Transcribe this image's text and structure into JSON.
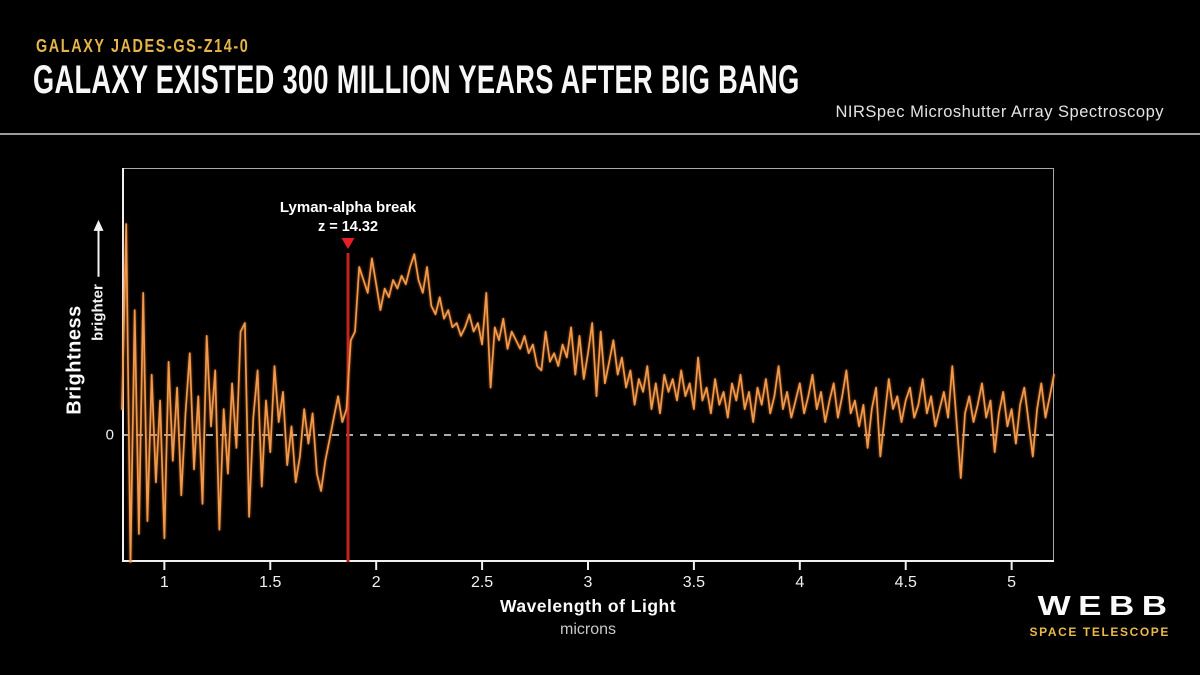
{
  "header": {
    "eyebrow": "GALAXY JADES-GS-Z14-0",
    "title": "GALAXY EXISTED 300 MILLION YEARS AFTER BIG BANG",
    "instrument": "NIRSpec Microshutter Array Spectroscopy"
  },
  "colors": {
    "background": "#000000",
    "accent_gold": "#e5b54a",
    "spectrum_orange": "#f19a4d",
    "marker_red": "#e81e25",
    "marker_line_red": "#c3231d",
    "axis_white": "#f0f0f0",
    "box_gray": "#a8a8a8"
  },
  "chart_data": {
    "type": "line",
    "xlabel": "Wavelength of Light",
    "xunit": "microns",
    "ylabel": "Brightness",
    "y_direction_label": "brighter",
    "y_zero_label": "0",
    "xlim": [
      0.8,
      5.2
    ],
    "ylim": [
      -2.95,
      6.2
    ],
    "x_ticks": [
      1,
      1.5,
      2,
      2.5,
      3,
      3.5,
      4,
      4.5,
      5
    ],
    "zero_line_y": 0,
    "grid": "off",
    "annotation": {
      "line1": "Lyman-alpha break",
      "line2": "z = 14.32",
      "x": 1.867
    },
    "series": {
      "name": "JADES-GS-z14-0 NIRSpec spectrum",
      "x_start": 0.8,
      "x_step": 0.02,
      "values": [
        0.6,
        4.9,
        -2.95,
        2.9,
        -2.3,
        3.3,
        -2.0,
        1.4,
        -1.1,
        0.8,
        -2.4,
        1.7,
        -0.6,
        1.1,
        -1.4,
        0.5,
        1.9,
        -0.8,
        0.9,
        -1.6,
        2.3,
        0.2,
        1.5,
        -2.2,
        0.6,
        -0.9,
        1.2,
        -0.3,
        2.4,
        2.6,
        -1.9,
        0.4,
        1.5,
        -1.2,
        0.8,
        -0.4,
        1.6,
        0.3,
        1.0,
        -0.7,
        0.2,
        -1.1,
        -0.5,
        0.6,
        -0.2,
        0.5,
        -0.9,
        -1.3,
        -0.6,
        -0.1,
        0.4,
        0.9,
        0.3,
        0.6,
        2.2,
        2.4,
        3.9,
        3.6,
        3.3,
        4.1,
        3.5,
        2.9,
        3.4,
        3.2,
        3.6,
        3.4,
        3.7,
        3.5,
        3.9,
        4.2,
        3.6,
        3.3,
        3.9,
        3.0,
        2.8,
        3.2,
        2.7,
        2.9,
        2.5,
        2.6,
        2.3,
        2.5,
        2.8,
        2.4,
        2.6,
        2.1,
        3.3,
        1.1,
        2.5,
        2.2,
        2.7,
        2.0,
        2.4,
        2.2,
        2.0,
        2.3,
        1.9,
        2.1,
        1.6,
        1.5,
        2.4,
        1.7,
        1.9,
        1.6,
        2.1,
        1.8,
        2.5,
        1.4,
        2.3,
        1.3,
        1.9,
        2.6,
        0.9,
        2.4,
        1.2,
        1.7,
        2.2,
        1.4,
        1.8,
        1.1,
        1.5,
        0.7,
        1.3,
        1.0,
        1.6,
        0.6,
        1.2,
        0.5,
        1.4,
        1.0,
        1.3,
        0.8,
        1.5,
        0.9,
        1.2,
        0.6,
        1.8,
        0.8,
        1.1,
        0.5,
        1.3,
        0.7,
        1.0,
        0.4,
        1.2,
        0.8,
        1.4,
        0.6,
        1.0,
        0.3,
        1.1,
        0.7,
        1.3,
        0.5,
        0.9,
        1.6,
        0.6,
        1.0,
        0.4,
        0.8,
        1.2,
        0.5,
        0.9,
        1.4,
        0.6,
        1.0,
        0.3,
        0.8,
        1.2,
        0.4,
        0.9,
        1.5,
        0.5,
        0.8,
        0.2,
        0.7,
        -0.3,
        0.6,
        1.1,
        -0.5,
        0.4,
        1.3,
        0.6,
        0.9,
        0.3,
        0.8,
        1.1,
        0.4,
        0.7,
        1.3,
        0.5,
        0.9,
        0.2,
        0.6,
        1.0,
        0.4,
        1.6,
        0.3,
        -1.0,
        0.5,
        0.9,
        0.3,
        0.7,
        1.2,
        0.4,
        0.8,
        -0.4,
        0.5,
        1.0,
        0.2,
        0.6,
        -0.2,
        0.7,
        1.1,
        0.3,
        -0.5,
        0.6,
        1.2,
        0.4,
        0.9,
        1.4
      ]
    }
  },
  "logo": {
    "title": "WEBB",
    "subtitle": "SPACE TELESCOPE"
  }
}
